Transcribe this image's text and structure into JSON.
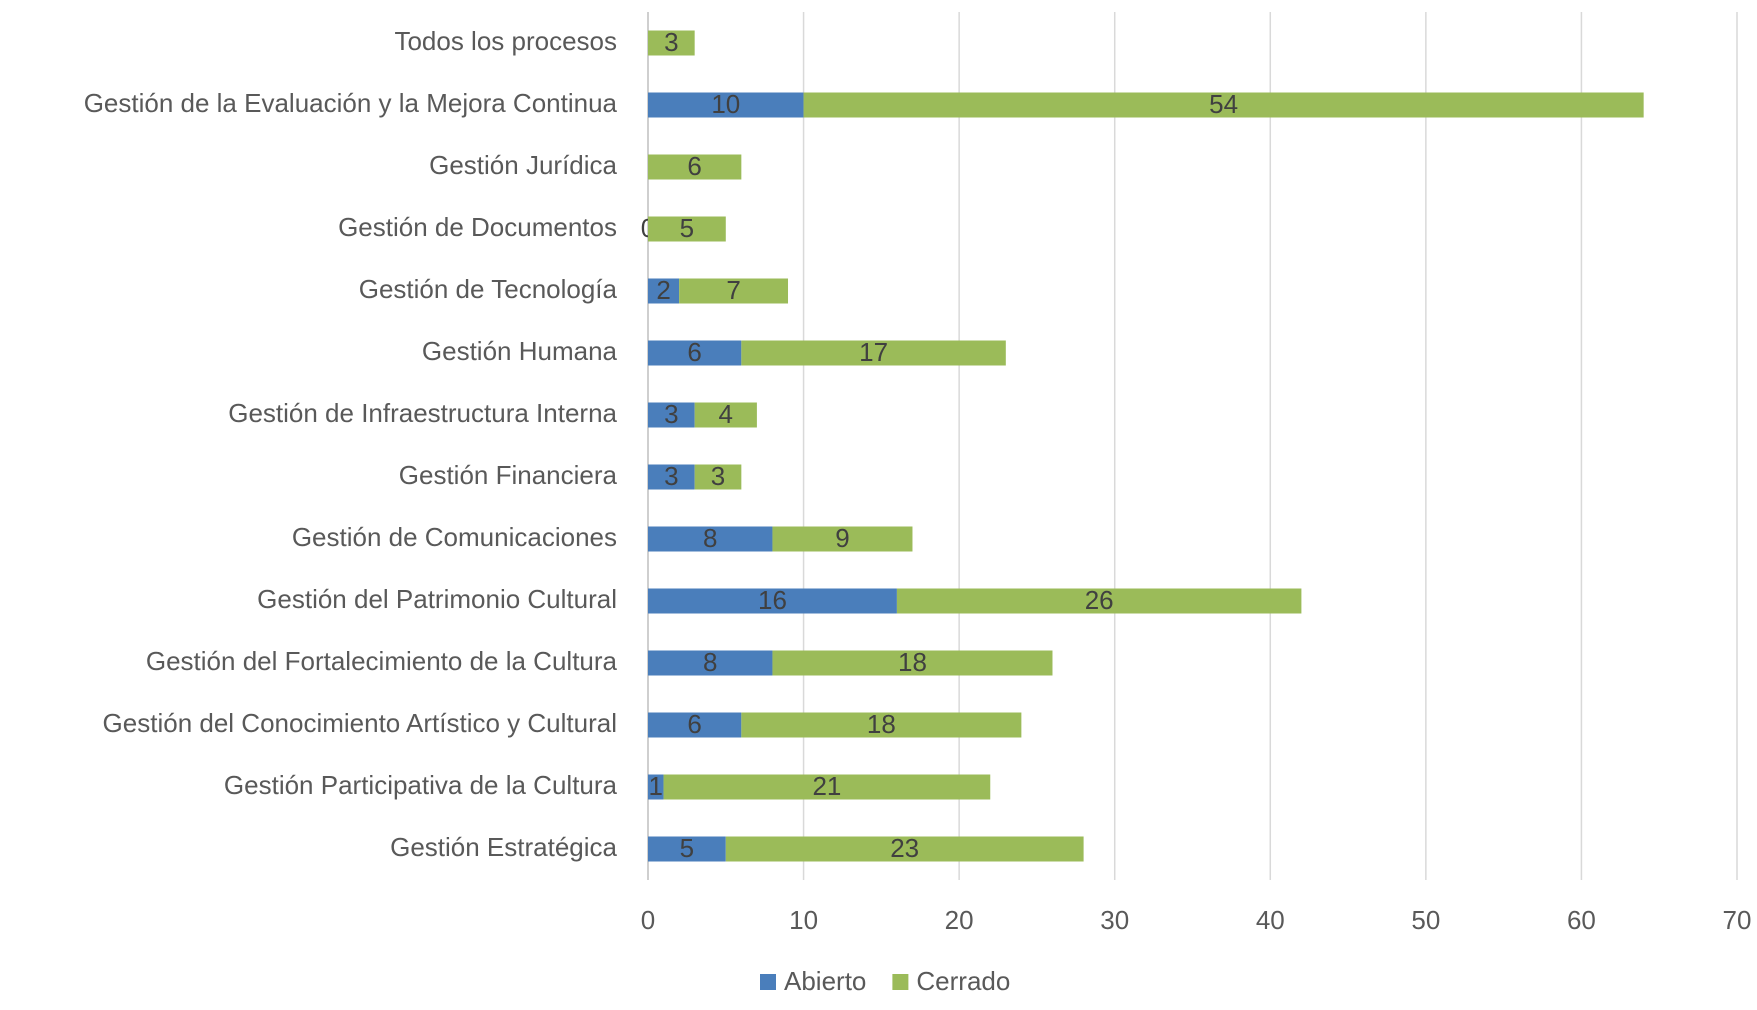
{
  "chart_data": {
    "type": "bar",
    "orientation": "horizontal",
    "stacked": true,
    "categories": [
      "Todos los procesos",
      "Gestión de la Evaluación y la Mejora Continua",
      "Gestión Jurídica",
      "Gestión de Documentos",
      "Gestión de Tecnología",
      "Gestión Humana",
      "Gestión de Infraestructura Interna",
      "Gestión Financiera",
      "Gestión de Comunicaciones",
      "Gestión del Patrimonio Cultural",
      "Gestión del Fortalecimiento de la Cultura",
      "Gestión del Conocimiento Artístico y Cultural",
      "Gestión Participativa de la Cultura",
      "Gestión Estratégica"
    ],
    "series": [
      {
        "name": "Abierto",
        "color": "#4a7ebb",
        "values": [
          null,
          10,
          null,
          0,
          2,
          6,
          3,
          3,
          8,
          16,
          8,
          6,
          1,
          5
        ]
      },
      {
        "name": "Cerrado",
        "color": "#9bbb59",
        "values": [
          3,
          54,
          6,
          5,
          7,
          17,
          4,
          3,
          9,
          26,
          18,
          18,
          21,
          23
        ]
      }
    ],
    "xlim": [
      0,
      70
    ],
    "xticks": [
      0,
      10,
      20,
      30,
      40,
      50,
      60,
      70
    ],
    "grid": true,
    "legend": "bottom"
  }
}
